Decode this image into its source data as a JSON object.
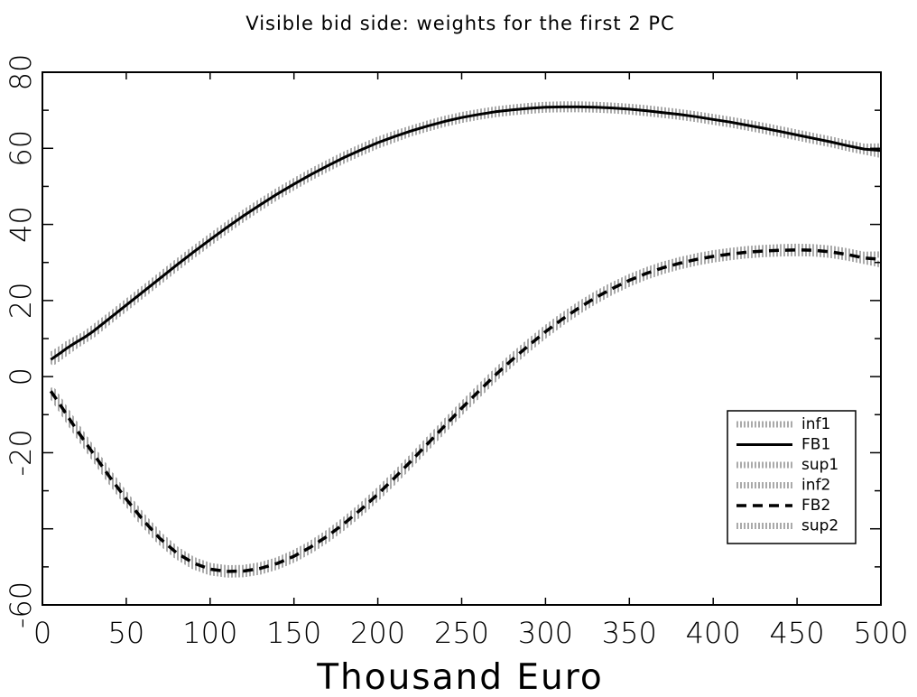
{
  "chart_data": {
    "type": "line",
    "title": "Visible bid side: weights for the first 2 PC",
    "xlabel": "Thousand Euro",
    "ylabel": "",
    "xlim": [
      0,
      500
    ],
    "ylim": [
      -60,
      80
    ],
    "x_ticks": [
      0,
      50,
      100,
      150,
      200,
      250,
      300,
      350,
      400,
      450,
      500
    ],
    "y_ticks": [
      -60,
      -20,
      0,
      20,
      40,
      60,
      80
    ],
    "x_tick_labels": [
      "0",
      "50",
      "100",
      "150",
      "200",
      "250",
      "300",
      "350",
      "400",
      "450",
      "500"
    ],
    "y_tick_labels": [
      "-60",
      "-20",
      "0",
      "20",
      "40",
      "60",
      "80"
    ],
    "grid": false,
    "legend_position": "bottom-right",
    "x": [
      5,
      10,
      15,
      20,
      25,
      30,
      40,
      50,
      60,
      70,
      80,
      90,
      100,
      110,
      120,
      130,
      140,
      150,
      160,
      170,
      180,
      190,
      200,
      210,
      220,
      230,
      240,
      250,
      260,
      270,
      280,
      290,
      300,
      310,
      320,
      330,
      340,
      350,
      360,
      370,
      380,
      390,
      400,
      410,
      420,
      430,
      440,
      450,
      460,
      470,
      480,
      490,
      500
    ],
    "series": [
      {
        "name": "inf1",
        "style": "hatched",
        "values": [
          3.4,
          5.0,
          6.6,
          8.2,
          9.6,
          11.0,
          14.6,
          18.1,
          21.6,
          25.1,
          28.6,
          32.0,
          35.3,
          38.5,
          41.6,
          44.5,
          47.3,
          49.9,
          52.4,
          54.7,
          56.9,
          58.9,
          60.8,
          62.4,
          64.0,
          65.3,
          66.5,
          67.5,
          68.3,
          69.0,
          69.5,
          69.9,
          70.2,
          70.3,
          70.3,
          70.2,
          70.0,
          69.7,
          69.3,
          68.8,
          68.3,
          67.7,
          67.0,
          66.3,
          65.5,
          64.7,
          63.8,
          62.9,
          62.0,
          61.1,
          60.1,
          59.2,
          58.3
        ]
      },
      {
        "name": "FB1",
        "style": "solid",
        "values": [
          4.5,
          6.0,
          7.6,
          9.0,
          10.3,
          11.8,
          15.3,
          18.8,
          22.3,
          25.8,
          29.3,
          32.7,
          36.0,
          39.2,
          42.3,
          45.2,
          48.0,
          50.6,
          53.1,
          55.4,
          57.6,
          59.6,
          61.5,
          63.1,
          64.6,
          65.9,
          67.1,
          68.1,
          68.9,
          69.6,
          70.1,
          70.5,
          70.8,
          70.9,
          70.9,
          70.8,
          70.6,
          70.3,
          69.9,
          69.4,
          68.9,
          68.3,
          67.6,
          66.9,
          66.1,
          65.3,
          64.4,
          63.5,
          62.6,
          61.7,
          60.7,
          59.8,
          59.4
        ]
      },
      {
        "name": "sup1",
        "style": "hatched",
        "values": [
          5.6,
          7.0,
          8.6,
          9.8,
          11.0,
          12.6,
          16.0,
          19.5,
          23.0,
          26.5,
          30.0,
          33.4,
          36.7,
          39.9,
          43.0,
          45.9,
          48.7,
          51.3,
          53.8,
          56.1,
          58.3,
          60.3,
          62.2,
          63.8,
          65.2,
          66.5,
          67.7,
          68.7,
          69.5,
          70.2,
          70.7,
          71.1,
          71.4,
          71.5,
          71.5,
          71.4,
          71.2,
          70.9,
          70.5,
          70.0,
          69.5,
          68.9,
          68.2,
          67.5,
          66.7,
          65.9,
          65.0,
          64.1,
          63.2,
          62.3,
          61.3,
          60.4,
          60.5
        ]
      },
      {
        "name": "inf2",
        "style": "hatched",
        "values": [
          -4.6,
          -7.8,
          -11.2,
          -14.5,
          -17.7,
          -20.8,
          -27.1,
          -33.0,
          -38.5,
          -43.3,
          -47.1,
          -49.8,
          -51.4,
          -52.0,
          -51.9,
          -51.2,
          -49.9,
          -48.0,
          -45.6,
          -42.7,
          -39.4,
          -35.7,
          -31.7,
          -27.4,
          -22.9,
          -18.3,
          -13.7,
          -9.1,
          -4.7,
          -0.4,
          3.6,
          7.4,
          11.0,
          14.3,
          17.3,
          20.0,
          22.4,
          24.5,
          26.3,
          27.8,
          29.0,
          30.0,
          30.8,
          31.4,
          31.9,
          32.2,
          32.4,
          32.5,
          32.4,
          32.0,
          31.3,
          30.4,
          29.5
        ]
      },
      {
        "name": "FB2",
        "style": "dashed",
        "values": [
          -3.8,
          -7.0,
          -10.4,
          -13.7,
          -16.9,
          -20.0,
          -26.3,
          -32.2,
          -37.7,
          -42.5,
          -46.3,
          -49.0,
          -50.6,
          -51.2,
          -51.1,
          -50.4,
          -49.1,
          -47.2,
          -44.8,
          -41.9,
          -38.6,
          -34.9,
          -30.9,
          -26.6,
          -22.1,
          -17.5,
          -12.9,
          -8.3,
          -3.9,
          0.4,
          4.4,
          8.2,
          11.8,
          15.1,
          18.1,
          20.8,
          23.2,
          25.3,
          27.1,
          28.6,
          29.8,
          30.8,
          31.6,
          32.2,
          32.7,
          33.0,
          33.2,
          33.3,
          33.2,
          32.8,
          32.1,
          31.2,
          30.8
        ]
      },
      {
        "name": "sup2",
        "style": "hatched",
        "values": [
          -3.0,
          -6.2,
          -9.6,
          -12.9,
          -16.1,
          -19.2,
          -25.5,
          -31.4,
          -36.9,
          -41.7,
          -45.5,
          -48.2,
          -49.8,
          -50.4,
          -50.3,
          -49.6,
          -48.3,
          -46.4,
          -44.0,
          -41.1,
          -37.8,
          -34.1,
          -30.1,
          -25.8,
          -21.3,
          -16.7,
          -12.1,
          -7.5,
          -3.1,
          1.2,
          5.2,
          9.0,
          12.6,
          15.9,
          18.9,
          21.6,
          24.0,
          26.1,
          27.9,
          29.4,
          30.6,
          31.6,
          32.4,
          33.0,
          33.5,
          33.8,
          34.0,
          34.1,
          34.0,
          33.6,
          32.9,
          32.0,
          32.1
        ]
      }
    ]
  }
}
